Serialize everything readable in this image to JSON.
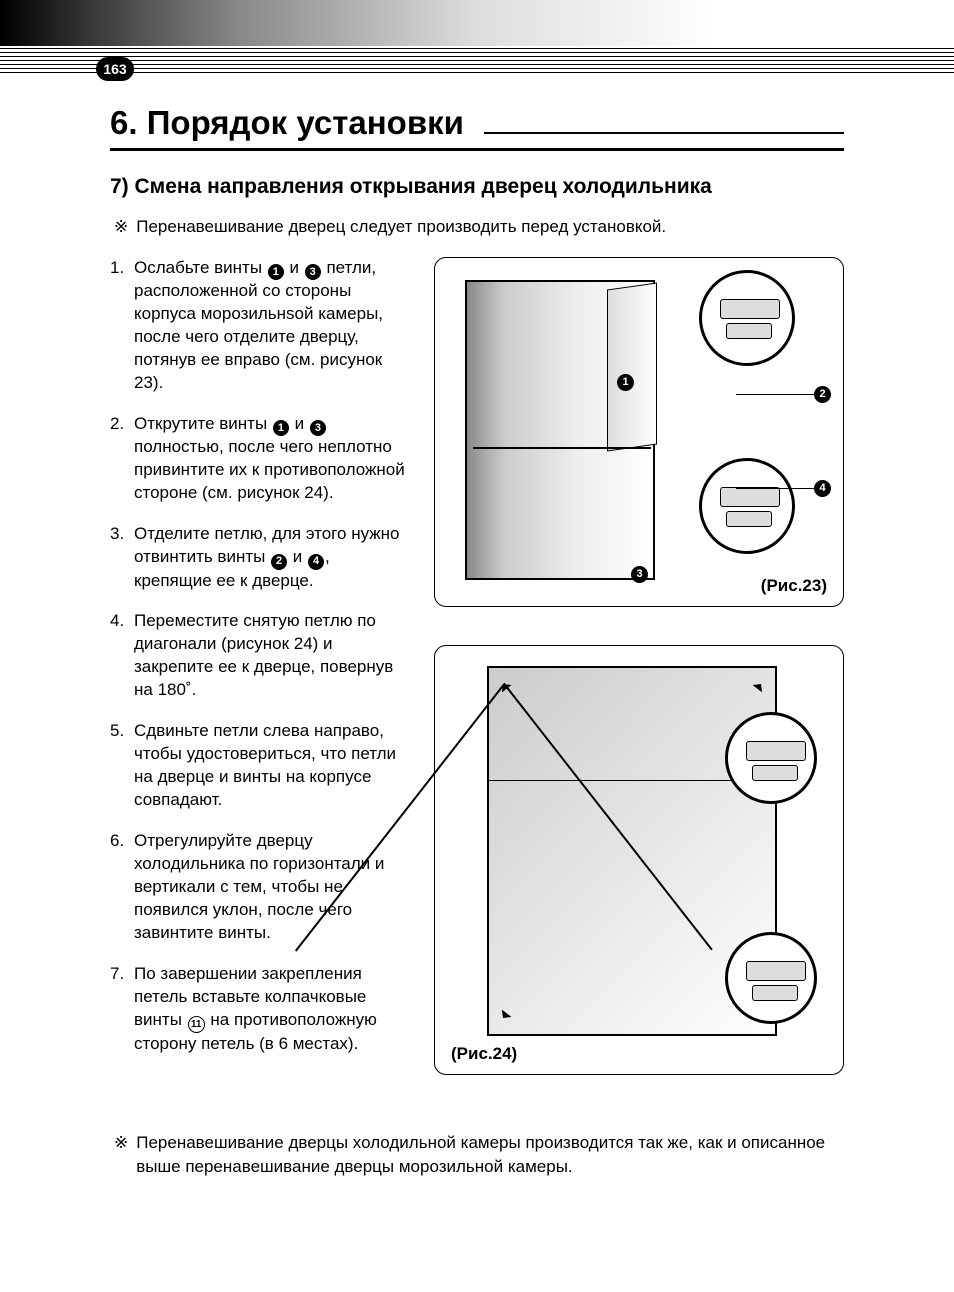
{
  "page_number": "163",
  "chapter_title": "6. Порядок установки",
  "section_title": "7) Смена направления открывания дверец холодильника",
  "note_symbol": "※",
  "intro_note": "Перенавешивание дверец следует производить перед установкой.",
  "steps": [
    {
      "pre": "Ослабьте винты ",
      "m1": "1",
      "mid": " и ",
      "m2": "3",
      "post": " петли, расположенной со стороны корпуса морозильнsой камеры, после чего отделите дверцу, потянув ее вправо (см. рисунок 23)."
    },
    {
      "pre": "Открутите винты ",
      "m1": "1",
      "mid": " и ",
      "m2": "3",
      "post": " полностью, после чего неплотно привинтите их к противоположной стороне (см. рисунок 24)."
    },
    {
      "pre": "Отделите петлю, для этого нужно отвинтить винты ",
      "m1": "2",
      "mid": " и ",
      "m2": "4",
      "post": ", крепящие ее к дверце."
    },
    {
      "pre": "Переместите снятую петлю по диагонали (рисунок 24) и закрепите ее к дверце, повернув на 180˚.",
      "m1": "",
      "mid": "",
      "m2": "",
      "post": ""
    },
    {
      "pre": "Сдвиньте петли слева направо, чтобы удостовериться, что петли на дверце и винты на корпусе совпадают.",
      "m1": "",
      "mid": "",
      "m2": "",
      "post": ""
    },
    {
      "pre": "Отрегулируйте дверцу холодильника по горизонтали и вертикали с тем, чтобы не появился уклон, после чего завинтите винты.",
      "m1": "",
      "mid": "",
      "m2": "",
      "post": ""
    },
    {
      "pre": "По завершении закрепления петель вставьте колпачковые винты ",
      "m1": "",
      "mid": "",
      "m2": "",
      "hollow": "11",
      "post": " на противоположную сторону петель (в 6 местах)."
    }
  ],
  "figures": {
    "fig23": {
      "label": "(Рис.23)",
      "callouts": [
        "1",
        "2",
        "3",
        "4"
      ]
    },
    "fig24": {
      "label": "(Рис.24)"
    }
  },
  "footer_note": "Перенавешивание дверцы холодильной камеры производится так же, как и описанное выше перенавешивание дверцы морозильной камеры.",
  "colors": {
    "text": "#000000",
    "bg": "#ffffff"
  }
}
